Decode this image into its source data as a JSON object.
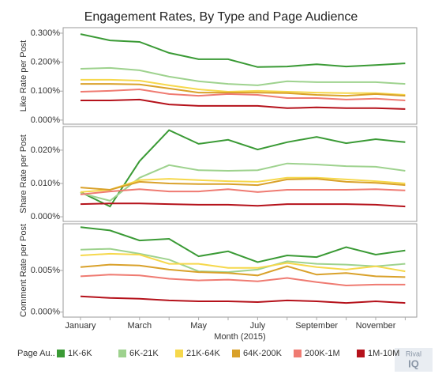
{
  "chart_data": {
    "type": "line",
    "title": "Engagement Rates, By Type and Page Audience",
    "xlabel": "Month (2015)",
    "categories": [
      "January",
      null,
      "March",
      null,
      "May",
      null,
      "July",
      null,
      "September",
      null,
      "November",
      null
    ],
    "legend_title": "Page Au..",
    "logo": [
      "Rival",
      "IQ"
    ],
    "panels": [
      {
        "ylabel": "Like Rate per Post",
        "ylim": [
          -0.014,
          0.319
        ],
        "yticks": [
          {
            "value": 0,
            "label": "0.000%"
          },
          {
            "value": 0.1,
            "label": "0.100%"
          },
          {
            "value": 0.2,
            "label": "0.200%"
          },
          {
            "value": 0.3,
            "label": "0.300%"
          }
        ]
      },
      {
        "ylabel": "Share Rate per Post",
        "ylim": [
          -0.0014,
          0.0271
        ],
        "yticks": [
          {
            "value": 0,
            "label": "0.000%"
          },
          {
            "value": 0.01,
            "label": "0.010%"
          },
          {
            "value": 0.02,
            "label": "0.020%"
          }
        ]
      },
      {
        "ylabel": "Comment Rate per Post",
        "ylim": [
          -0.0006,
          0.0106
        ],
        "yticks": [
          {
            "value": 0,
            "label": "0.000%"
          },
          {
            "value": 0.005,
            "label": "0.005%"
          }
        ]
      }
    ],
    "series": [
      {
        "name": "1K-6K",
        "color": "#3a9a35",
        "values": [
          [
            0.297,
            0.275,
            0.27,
            0.232,
            0.21,
            0.21,
            0.183,
            0.185,
            0.193,
            0.185,
            0.19,
            0.196
          ],
          [
            0.0074,
            0.0031,
            0.0167,
            0.026,
            0.0219,
            0.0231,
            0.0202,
            0.0224,
            0.024,
            0.0221,
            0.0233,
            0.0224
          ],
          [
            0.0102,
            0.0098,
            0.0086,
            0.0088,
            0.0067,
            0.0073,
            0.006,
            0.0068,
            0.0066,
            0.0078,
            0.0069,
            0.0074
          ]
        ]
      },
      {
        "name": "6K-21K",
        "color": "#9ed28e",
        "values": [
          [
            0.177,
            0.18,
            0.172,
            0.15,
            0.134,
            0.125,
            0.12,
            0.134,
            0.131,
            0.131,
            0.131,
            0.125
          ],
          [
            0.0071,
            0.0048,
            0.0117,
            0.0155,
            0.014,
            0.0138,
            0.014,
            0.016,
            0.0157,
            0.0152,
            0.015,
            0.0138
          ],
          [
            0.0075,
            0.0076,
            0.007,
            0.0063,
            0.0049,
            0.0048,
            0.0051,
            0.0061,
            0.0058,
            0.0057,
            0.0055,
            0.0058
          ]
        ]
      },
      {
        "name": "21K-64K",
        "color": "#f6d84c",
        "values": [
          [
            0.139,
            0.139,
            0.136,
            0.12,
            0.106,
            0.098,
            0.101,
            0.098,
            0.095,
            0.093,
            0.093,
            0.087
          ],
          [
            0.0074,
            0.0081,
            0.011,
            0.0114,
            0.011,
            0.0107,
            0.0105,
            0.0117,
            0.0117,
            0.0112,
            0.0107,
            0.01
          ],
          [
            0.0068,
            0.007,
            0.0069,
            0.0058,
            0.0058,
            0.0053,
            0.0053,
            0.0059,
            0.0054,
            0.0051,
            0.0055,
            0.0049
          ]
        ]
      },
      {
        "name": "64K-200K",
        "color": "#d9a12a",
        "values": [
          [
            0.125,
            0.125,
            0.123,
            0.109,
            0.095,
            0.095,
            0.095,
            0.093,
            0.087,
            0.084,
            0.09,
            0.084
          ],
          [
            0.0088,
            0.0081,
            0.0105,
            0.01,
            0.0098,
            0.0098,
            0.0095,
            0.0112,
            0.0114,
            0.0105,
            0.0102,
            0.0095
          ],
          [
            0.0054,
            0.0057,
            0.0056,
            0.0051,
            0.0048,
            0.0047,
            0.0044,
            0.0055,
            0.0045,
            0.0047,
            0.0043,
            0.0042
          ]
        ]
      },
      {
        "name": "200K-1M",
        "color": "#ef7b72",
        "values": [
          [
            0.098,
            0.101,
            0.106,
            0.09,
            0.084,
            0.09,
            0.087,
            0.076,
            0.076,
            0.071,
            0.074,
            0.068
          ],
          [
            0.0067,
            0.0076,
            0.0083,
            0.0076,
            0.0076,
            0.0083,
            0.0074,
            0.0081,
            0.0081,
            0.0081,
            0.0083,
            0.0079
          ],
          [
            0.0043,
            0.0045,
            0.0044,
            0.004,
            0.0038,
            0.0039,
            0.0037,
            0.0041,
            0.0036,
            0.0032,
            0.0033,
            0.0033
          ]
        ]
      },
      {
        "name": "1M-10M",
        "color": "#b5121b",
        "values": [
          [
            0.068,
            0.068,
            0.071,
            0.054,
            0.049,
            0.049,
            0.049,
            0.041,
            0.044,
            0.041,
            0.041,
            0.038
          ],
          [
            0.0038,
            0.004,
            0.004,
            0.0038,
            0.0036,
            0.0036,
            0.0033,
            0.0038,
            0.0038,
            0.0038,
            0.0036,
            0.0031
          ],
          [
            0.0019,
            0.0017,
            0.0016,
            0.0014,
            0.0013,
            0.0013,
            0.0012,
            0.0014,
            0.0013,
            0.0011,
            0.0013,
            0.0011
          ]
        ]
      }
    ]
  }
}
